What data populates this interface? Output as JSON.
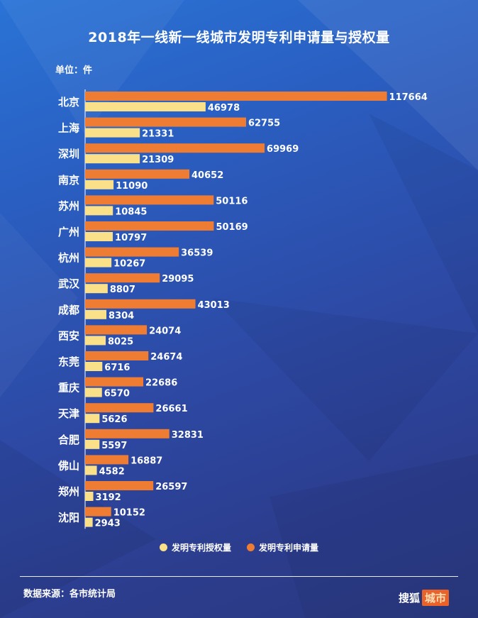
{
  "title": "2018年一线新一线城市发明专利申请量与授权量",
  "unit_label": "单位：件",
  "colors": {
    "application": "#ee7d33",
    "grant": "#fbe08a",
    "text": "#ffffff"
  },
  "chart_data": {
    "type": "bar",
    "orientation": "horizontal",
    "categories": [
      "北京",
      "上海",
      "深圳",
      "南京",
      "苏州",
      "广州",
      "杭州",
      "武汉",
      "成都",
      "西安",
      "东莞",
      "重庆",
      "天津",
      "合肥",
      "佛山",
      "郑州",
      "沈阳"
    ],
    "series": [
      {
        "name": "发明专利申请量",
        "key": "application",
        "values": [
          117664,
          62755,
          69969,
          40652,
          50116,
          50169,
          36539,
          29095,
          43013,
          24074,
          24674,
          22686,
          26661,
          32831,
          16887,
          26597,
          10152
        ]
      },
      {
        "name": "发明专利授权量",
        "key": "grant",
        "values": [
          46978,
          21331,
          21309,
          11090,
          10845,
          10797,
          10267,
          8807,
          8304,
          8025,
          6716,
          6570,
          5626,
          5597,
          4582,
          3192,
          2943
        ]
      }
    ],
    "xlim": [
      0,
      120000
    ],
    "legend_position": "bottom"
  },
  "legend": {
    "grant_label": "发明专利授权量",
    "application_label": "发明专利申请量"
  },
  "footer": {
    "source": "数据来源：各市统计局",
    "logo_name": "搜狐",
    "logo_tag": "城市"
  }
}
